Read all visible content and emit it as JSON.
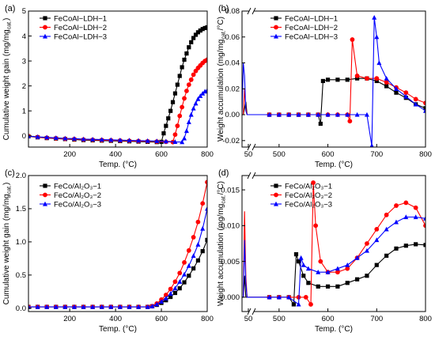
{
  "chart_data": [
    {
      "type": "line",
      "panel_label": "(a)",
      "xlabel": "Temp. (°C)",
      "ylabel": "Cumulative weight gain (mg/mg",
      "ylabel_sub": "cat.",
      "ylabel_end": ")",
      "xlim": [
        20,
        800
      ],
      "ylim": [
        -0.45,
        5.0
      ],
      "xticks": [
        200,
        400,
        600,
        800
      ],
      "yticks": [
        0,
        1,
        2,
        3,
        4,
        5
      ],
      "legend_position": "top-left",
      "series": [
        {
          "name": "FeCoAl−LDH−1",
          "color": "#000000",
          "marker": "square",
          "x": [
            20,
            60,
            100,
            140,
            180,
            220,
            260,
            300,
            340,
            380,
            420,
            460,
            500,
            540,
            580,
            600,
            610,
            620,
            630,
            640,
            650,
            660,
            670,
            680,
            690,
            700,
            710,
            720,
            730,
            740,
            750,
            760,
            770,
            780,
            790,
            800
          ],
          "y": [
            -0.02,
            -0.06,
            -0.09,
            -0.11,
            -0.13,
            -0.15,
            -0.17,
            -0.18,
            -0.19,
            -0.2,
            -0.21,
            -0.22,
            -0.23,
            -0.24,
            -0.25,
            -0.24,
            0.1,
            0.4,
            0.7,
            1.0,
            1.35,
            1.7,
            2.05,
            2.4,
            2.75,
            3.05,
            3.3,
            3.55,
            3.75,
            3.92,
            4.05,
            4.15,
            4.22,
            4.28,
            4.32,
            4.35
          ]
        },
        {
          "name": "FeCoAl−LDH−2",
          "color": "#ff0000",
          "marker": "circle",
          "x": [
            20,
            60,
            100,
            140,
            180,
            220,
            260,
            300,
            340,
            380,
            420,
            460,
            500,
            540,
            580,
            620,
            650,
            660,
            670,
            680,
            690,
            700,
            710,
            720,
            730,
            740,
            750,
            760,
            770,
            780,
            790,
            800
          ],
          "y": [
            -0.01,
            -0.05,
            -0.08,
            -0.1,
            -0.12,
            -0.13,
            -0.15,
            -0.16,
            -0.17,
            -0.18,
            -0.19,
            -0.2,
            -0.21,
            -0.22,
            -0.23,
            -0.24,
            -0.25,
            0.05,
            0.4,
            0.8,
            1.15,
            1.5,
            1.8,
            2.05,
            2.25,
            2.45,
            2.6,
            2.72,
            2.82,
            2.92,
            3.0,
            3.05
          ]
        },
        {
          "name": "FeCoAl−LDH−3",
          "color": "#0000ff",
          "marker": "triangle",
          "x": [
            20,
            60,
            100,
            140,
            180,
            220,
            260,
            300,
            340,
            380,
            420,
            460,
            500,
            540,
            580,
            620,
            660,
            690,
            700,
            710,
            720,
            730,
            740,
            750,
            760,
            770,
            780,
            790,
            800
          ],
          "y": [
            -0.01,
            -0.04,
            -0.06,
            -0.08,
            -0.1,
            -0.11,
            -0.13,
            -0.14,
            -0.15,
            -0.16,
            -0.17,
            -0.18,
            -0.19,
            -0.2,
            -0.21,
            -0.22,
            -0.24,
            -0.25,
            -0.1,
            0.2,
            0.55,
            0.85,
            1.1,
            1.3,
            1.48,
            1.6,
            1.7,
            1.78,
            1.82
          ]
        }
      ]
    },
    {
      "type": "line",
      "panel_label": "(b)",
      "xlabel": "Temp. (°C)",
      "ylabel": "Weight accumulation (mg/mg",
      "ylabel_sub": "cat.",
      "ylabel_end": "/°C)",
      "xlim": [
        45,
        800
      ],
      "axis_break_after": 50,
      "broken_segments": [
        [
          45,
          50
        ],
        [
          450,
          800
        ]
      ],
      "ylim": [
        -0.025,
        0.08
      ],
      "xticks": [
        50,
        500,
        600,
        700,
        800
      ],
      "yticks": [
        -0.02,
        0.0,
        0.02,
        0.04,
        0.06,
        0.08
      ],
      "legend_position": "top-center",
      "series": [
        {
          "name": "FeCoAl−LDH−1",
          "color": "#000000",
          "marker": "square",
          "x": [
            45,
            46,
            47,
            48,
            49,
            50,
            480,
            500,
            520,
            540,
            560,
            580,
            585,
            590,
            600,
            620,
            640,
            660,
            680,
            700,
            720,
            740,
            760,
            780,
            800
          ],
          "y": [
            0.0,
            0.0,
            0.005,
            0.01,
            0.0,
            0.0,
            0.0,
            0.0,
            0.0,
            0.0,
            0.0,
            0.0,
            -0.007,
            0.026,
            0.027,
            0.027,
            0.027,
            0.028,
            0.028,
            0.026,
            0.022,
            0.017,
            0.013,
            0.008,
            0.005
          ]
        },
        {
          "name": "FeCoAl−LDH−2",
          "color": "#ff0000",
          "marker": "circle",
          "x": [
            45,
            46,
            47,
            48,
            49,
            50,
            480,
            500,
            520,
            540,
            560,
            580,
            600,
            620,
            640,
            645,
            650,
            660,
            680,
            700,
            720,
            740,
            760,
            780,
            800
          ],
          "y": [
            0.0,
            0.0,
            0.02,
            0.005,
            0.0,
            0.0,
            0.0,
            0.0,
            0.0,
            0.0,
            0.0,
            0.0,
            0.0,
            0.0,
            0.0,
            -0.005,
            0.058,
            0.03,
            0.028,
            0.028,
            0.025,
            0.021,
            0.017,
            0.012,
            0.009
          ]
        },
        {
          "name": "FeCoAl−LDH−3",
          "color": "#0000ff",
          "marker": "triangle",
          "x": [
            45,
            46,
            47,
            48,
            49,
            50,
            480,
            500,
            520,
            540,
            560,
            580,
            600,
            620,
            640,
            660,
            680,
            690,
            695,
            700,
            705,
            720,
            740,
            760,
            780,
            800
          ],
          "y": [
            0.0,
            0.04,
            0.03,
            0.003,
            0.0,
            0.0,
            0.0,
            0.0,
            0.0,
            0.0,
            0.0,
            0.0,
            0.0,
            0.0,
            0.0,
            0.0,
            0.0,
            -0.024,
            0.075,
            0.06,
            0.04,
            0.028,
            0.02,
            0.014,
            0.008,
            0.003
          ]
        }
      ]
    },
    {
      "type": "line",
      "panel_label": "(c)",
      "xlabel": "Temp. (°C)",
      "ylabel": "Cumulative weight gain (mg/mg",
      "ylabel_sub": "cat.",
      "ylabel_end": ")",
      "xlim": [
        20,
        800
      ],
      "ylim": [
        -0.05,
        2.0
      ],
      "xticks": [
        200,
        400,
        600,
        800
      ],
      "yticks": [
        0.0,
        0.5,
        1.0,
        1.5,
        2.0
      ],
      "legend_position": "top-left",
      "series": [
        {
          "name": "FeCo/Al₂O₃−1",
          "color": "#000000",
          "marker": "square",
          "x": [
            20,
            60,
            100,
            140,
            180,
            220,
            260,
            300,
            340,
            380,
            420,
            460,
            500,
            540,
            560,
            580,
            600,
            620,
            640,
            660,
            680,
            700,
            720,
            740,
            760,
            780,
            800
          ],
          "y": [
            0.02,
            0.02,
            0.02,
            0.02,
            0.02,
            0.02,
            0.02,
            0.02,
            0.02,
            0.02,
            0.02,
            0.02,
            0.02,
            0.02,
            0.03,
            0.05,
            0.08,
            0.12,
            0.17,
            0.23,
            0.3,
            0.39,
            0.49,
            0.6,
            0.72,
            0.86,
            1.03
          ]
        },
        {
          "name": "FeCo/Al₂O₃−2",
          "color": "#ff0000",
          "marker": "circle",
          "x": [
            20,
            60,
            100,
            140,
            180,
            220,
            260,
            300,
            340,
            380,
            420,
            460,
            500,
            540,
            560,
            580,
            600,
            620,
            640,
            660,
            680,
            700,
            720,
            740,
            760,
            780,
            800
          ],
          "y": [
            0.02,
            0.02,
            0.02,
            0.02,
            0.02,
            0.02,
            0.02,
            0.02,
            0.02,
            0.02,
            0.02,
            0.02,
            0.02,
            0.02,
            0.03,
            0.07,
            0.13,
            0.2,
            0.29,
            0.4,
            0.53,
            0.69,
            0.87,
            1.07,
            1.3,
            1.58,
            1.9
          ]
        },
        {
          "name": "FeCo/Al₂O₃−3",
          "color": "#0000ff",
          "marker": "triangle",
          "x": [
            20,
            60,
            100,
            140,
            180,
            220,
            260,
            300,
            340,
            380,
            420,
            460,
            500,
            540,
            560,
            580,
            600,
            620,
            640,
            660,
            680,
            700,
            720,
            740,
            760,
            780,
            800
          ],
          "y": [
            0.02,
            0.02,
            0.02,
            0.02,
            0.02,
            0.02,
            0.02,
            0.02,
            0.02,
            0.02,
            0.02,
            0.02,
            0.02,
            0.02,
            0.03,
            0.06,
            0.1,
            0.15,
            0.22,
            0.3,
            0.4,
            0.51,
            0.64,
            0.79,
            0.96,
            1.2,
            1.5
          ]
        }
      ]
    },
    {
      "type": "line",
      "panel_label": "(d)",
      "xlabel": "Temp. (°C)",
      "ylabel": "Weight accumulation (mg/mg",
      "ylabel_sub": "cat.",
      "ylabel_end": "/°C)",
      "xlim": [
        45,
        800
      ],
      "axis_break_after": 50,
      "broken_segments": [
        [
          45,
          50
        ],
        [
          450,
          800
        ]
      ],
      "ylim": [
        -0.002,
        0.017
      ],
      "xticks": [
        50,
        500,
        600,
        700,
        800
      ],
      "yticks": [
        0.0,
        0.005,
        0.01,
        0.015
      ],
      "legend_position": "top-center",
      "series": [
        {
          "name": "FeCo/Al₂O₃−1",
          "color": "#000000",
          "marker": "square",
          "x": [
            45,
            46,
            47,
            48,
            49,
            50,
            480,
            500,
            520,
            530,
            535,
            540,
            550,
            560,
            580,
            600,
            620,
            640,
            660,
            680,
            700,
            720,
            740,
            760,
            780,
            800
          ],
          "y": [
            0.0,
            0.0,
            0.003,
            0.0,
            0.0,
            0.0,
            0.0,
            0.0,
            0.0,
            -0.001,
            0.006,
            0.005,
            0.003,
            0.002,
            0.0015,
            0.0015,
            0.0015,
            0.002,
            0.0025,
            0.003,
            0.0045,
            0.0058,
            0.0068,
            0.0072,
            0.0074,
            0.0073
          ]
        },
        {
          "name": "FeCo/Al₂O₃−2",
          "color": "#ff0000",
          "marker": "circle",
          "x": [
            45,
            46,
            47,
            48,
            49,
            50,
            480,
            500,
            520,
            540,
            555,
            565,
            570,
            575,
            585,
            600,
            620,
            640,
            660,
            680,
            700,
            720,
            740,
            760,
            780,
            800
          ],
          "y": [
            0.0,
            0.0,
            0.012,
            0.003,
            0.0,
            0.0,
            0.0,
            0.0,
            0.0,
            0.0,
            0.0,
            -0.001,
            0.016,
            0.01,
            0.005,
            0.0035,
            0.0035,
            0.004,
            0.0055,
            0.0075,
            0.0095,
            0.0115,
            0.0128,
            0.0132,
            0.0125,
            0.01
          ]
        },
        {
          "name": "FeCo/Al₂O₃−3",
          "color": "#0000ff",
          "marker": "triangle",
          "x": [
            45,
            46,
            47,
            48,
            49,
            50,
            480,
            500,
            520,
            540,
            545,
            550,
            560,
            580,
            600,
            620,
            640,
            660,
            680,
            700,
            720,
            740,
            760,
            780,
            800
          ],
          "y": [
            0.0,
            0.0,
            0.008,
            0.002,
            0.0,
            0.0,
            0.0,
            0.0,
            0.0,
            -0.001,
            0.0055,
            0.0045,
            0.004,
            0.0035,
            0.0035,
            0.004,
            0.0045,
            0.0055,
            0.0065,
            0.008,
            0.0095,
            0.0105,
            0.0112,
            0.0112,
            0.011
          ]
        }
      ]
    }
  ]
}
